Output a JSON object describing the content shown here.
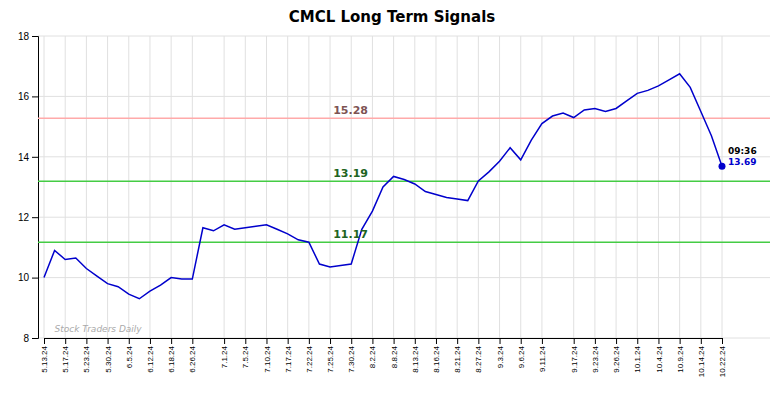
{
  "chart_data": {
    "type": "line",
    "title": "CMCL Long Term Signals",
    "categories": [
      "5.13.24",
      null,
      "5.17.24",
      null,
      "5.23.24",
      null,
      "5.30.24",
      null,
      "6.5.24",
      null,
      "6.12.24",
      null,
      "6.18.24",
      null,
      "6.26.24",
      null,
      null,
      "7.1.24",
      null,
      "7.5.24",
      null,
      "7.10.24",
      null,
      "7.17.24",
      null,
      "7.22.24",
      null,
      "7.25.24",
      null,
      "7.30.24",
      null,
      "8.2.24",
      null,
      "8.8.24",
      null,
      "8.13.24",
      null,
      "8.16.24",
      null,
      "8.21.24",
      null,
      "8.27.24",
      null,
      "9.3.24",
      null,
      "9.6.24",
      null,
      "9.11.24",
      null,
      null,
      "9.17.24",
      null,
      "9.23.24",
      null,
      "9.26.24",
      null,
      "10.1.24",
      null,
      "10.4.24",
      null,
      "10.9.24",
      null,
      "10.14.24",
      null,
      "10.22.24"
    ],
    "values": [
      10.0,
      10.9,
      10.6,
      10.65,
      10.3,
      10.05,
      9.8,
      9.7,
      9.45,
      9.3,
      9.55,
      9.75,
      10.0,
      9.95,
      9.95,
      11.65,
      11.55,
      11.75,
      11.6,
      11.65,
      11.7,
      11.75,
      11.6,
      11.45,
      11.25,
      11.17,
      10.45,
      10.35,
      10.4,
      10.45,
      11.6,
      12.2,
      13.0,
      13.35,
      13.25,
      13.1,
      12.85,
      12.75,
      12.65,
      12.6,
      12.55,
      13.2,
      13.5,
      13.85,
      14.3,
      13.9,
      14.55,
      15.1,
      15.35,
      15.45,
      15.3,
      15.55,
      15.6,
      15.5,
      15.6,
      15.85,
      16.1,
      16.2,
      16.35,
      16.55,
      16.75,
      16.3,
      15.5,
      14.7,
      13.69
    ],
    "color": "#0000cc",
    "marker": "none",
    "line_style": "solid",
    "hlines": [
      {
        "value": 15.28,
        "label": "15.28",
        "color": "#ffaaaa"
      },
      {
        "value": 13.19,
        "label": "13.19",
        "color": "#44cc44"
      },
      {
        "value": 11.17,
        "label": "11.17",
        "color": "#44cc44"
      }
    ],
    "annotations": [
      "09:36",
      "13.69"
    ],
    "watermark": "Stock Traders Daily",
    "ylim": [
      8,
      18
    ],
    "yticks": [
      8,
      10,
      12,
      14,
      16,
      18
    ],
    "grid": true
  }
}
